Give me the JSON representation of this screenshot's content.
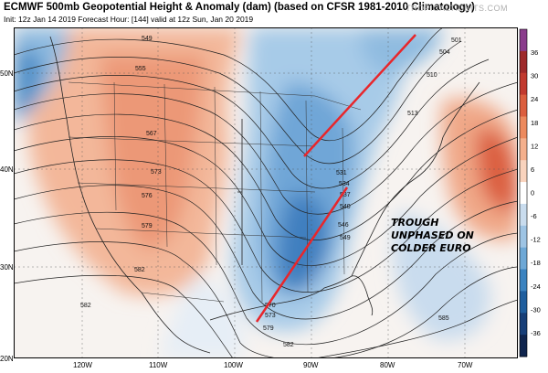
{
  "header": {
    "title": "ECMWF 500mb Geopotential Height & Anomaly (dam) (based on CFSR 1981-2010 Climatology)",
    "subtitle": "Init: 12z Jan 14 2019   Forecast Hour: [144]   valid at 12z Sun, Jan 20 2019",
    "brand": "TROPICALTIDBITS.COM"
  },
  "annotation": {
    "line1": "TROUGH",
    "line2": "UNPHASED ON",
    "line3": "COLDER EURO"
  },
  "lat_labels": [
    "50N",
    "40N",
    "30N",
    "20N"
  ],
  "lon_labels": [
    "120W",
    "110W",
    "100W",
    "90W",
    "80W",
    "70W"
  ],
  "height_labels": [
    "549",
    "555",
    "567",
    "573",
    "576",
    "579",
    "582",
    "501",
    "504",
    "510",
    "513",
    "531",
    "534",
    "537",
    "540",
    "546",
    "549",
    "570",
    "573",
    "579",
    "582",
    "585"
  ],
  "colorbar": {
    "ticks": [
      "36",
      "30",
      "24",
      "18",
      "12",
      "6",
      "0",
      "-6",
      "-12",
      "-18",
      "-24",
      "-30",
      "-36"
    ],
    "colors": [
      "#8a3c8c",
      "#9e2a2b",
      "#c13a2f",
      "#db5f3f",
      "#ec8a5e",
      "#f4b08d",
      "#f9d3bd",
      "#ffffff",
      "#c9dcee",
      "#9ec4e4",
      "#6ea8d6",
      "#3b83c0",
      "#1f5e9e",
      "#183f78",
      "#10254e"
    ]
  }
}
